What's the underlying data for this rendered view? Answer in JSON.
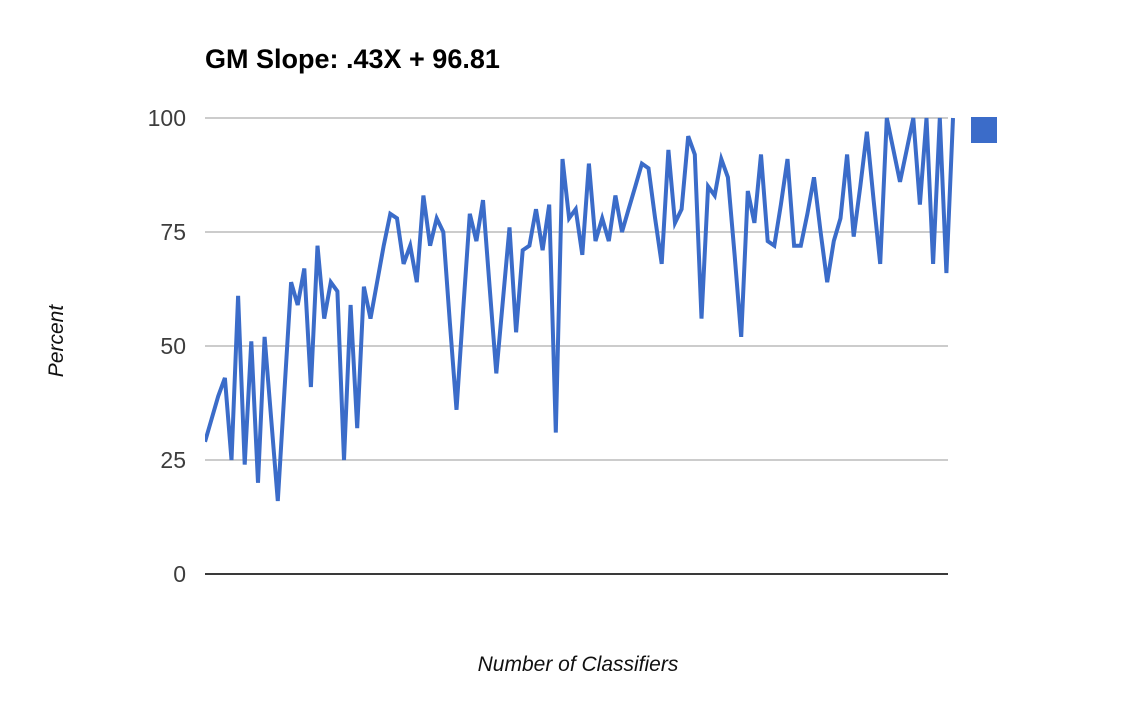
{
  "title": "GM Slope: .43X + 96.81",
  "y_axis": {
    "label": "Percent",
    "ticks": {
      "t100": "100",
      "t75": "75",
      "t50": "50",
      "t25": "25",
      "t0": "0"
    }
  },
  "x_axis": {
    "label": "Number of Classifiers"
  },
  "legend": {
    "marker": "square",
    "color": "#3b6cc9"
  },
  "colors": {
    "series": "#3b6cc9",
    "gridline": "#cccccc",
    "axis": "#3a3a3a"
  },
  "chart_data": {
    "type": "line",
    "title": "GM Slope: .43X + 96.81",
    "xlabel": "Number of Classifiers",
    "ylabel": "Percent",
    "ylim": [
      0,
      100
    ],
    "yticks": [
      0,
      25,
      50,
      75,
      100
    ],
    "grid": true,
    "legend_position": "top-right",
    "series": [
      {
        "name": "",
        "color": "#3b6cc9",
        "values": [
          29,
          34,
          39,
          43,
          25,
          61,
          24,
          51,
          20,
          52,
          34,
          16,
          40,
          64,
          59,
          67,
          41,
          72,
          56,
          64,
          62,
          25,
          59,
          32,
          63,
          56,
          64,
          72,
          79,
          78,
          68,
          72,
          64,
          83,
          72,
          78,
          75,
          55,
          36,
          58,
          79,
          73,
          82,
          63,
          44,
          60,
          76,
          53,
          71,
          72,
          80,
          71,
          81,
          31,
          91,
          78,
          80,
          70,
          90,
          73,
          78,
          73,
          83,
          75,
          80,
          85,
          90,
          89,
          78,
          68,
          93,
          77,
          80,
          96,
          92,
          56,
          85,
          83,
          91,
          87,
          70,
          52,
          84,
          77,
          92,
          73,
          72,
          81,
          91,
          72,
          72,
          79,
          87,
          75,
          64,
          73,
          78,
          92,
          74,
          85,
          97,
          82,
          68,
          100,
          93,
          86,
          93,
          100,
          81,
          100,
          68,
          100,
          66,
          100
        ]
      }
    ]
  }
}
